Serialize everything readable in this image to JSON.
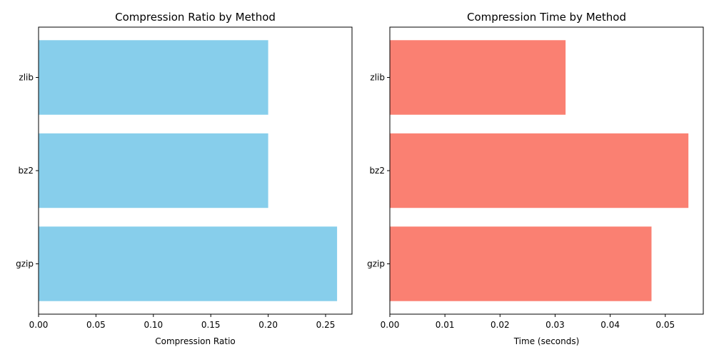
{
  "chart_data": [
    {
      "type": "bar",
      "orientation": "horizontal",
      "title": "Compression Ratio by Method",
      "xlabel": "Compression Ratio",
      "ylabel": "",
      "categories": [
        "gzip",
        "bz2",
        "zlib"
      ],
      "values": [
        0.26,
        0.2,
        0.2
      ],
      "xlim": [
        0,
        0.273
      ],
      "xticks": [
        "0.00",
        "0.05",
        "0.10",
        "0.15",
        "0.20",
        "0.25"
      ],
      "color": "#87ceeb",
      "grid": false,
      "legend": "none"
    },
    {
      "type": "bar",
      "orientation": "horizontal",
      "title": "Compression Time by Method",
      "xlabel": "Time (seconds)",
      "ylabel": "",
      "categories": [
        "gzip",
        "bz2",
        "zlib"
      ],
      "values": [
        0.0475,
        0.0542,
        0.0319
      ],
      "xlim": [
        0,
        0.0569
      ],
      "xticks": [
        "0.00",
        "0.01",
        "0.02",
        "0.03",
        "0.04",
        "0.05"
      ],
      "color": "#fa8072",
      "grid": false,
      "legend": "none"
    }
  ]
}
